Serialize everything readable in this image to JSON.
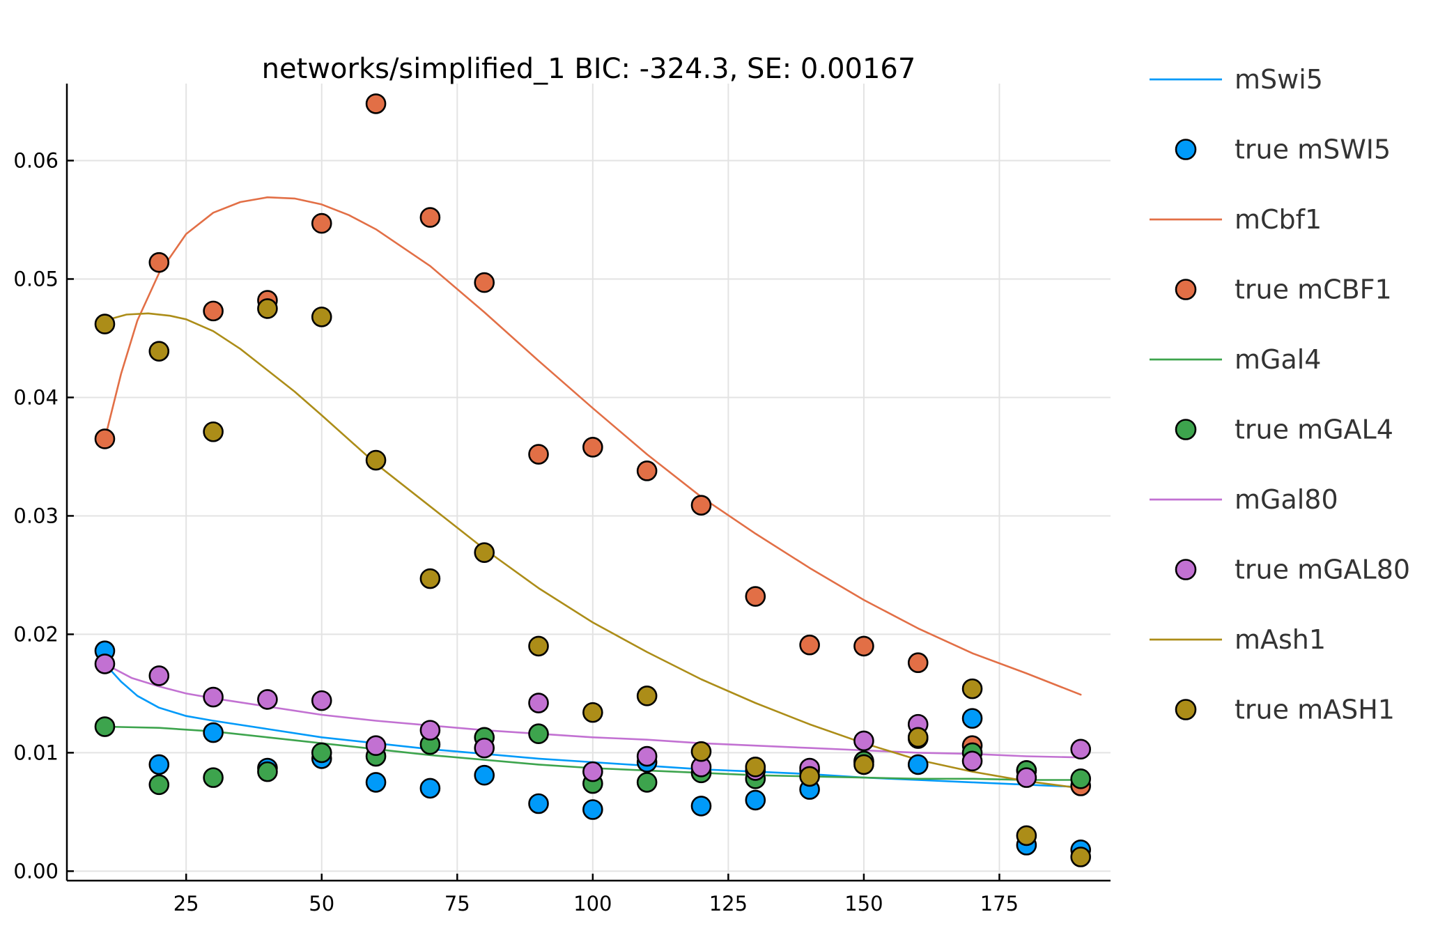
{
  "chart_data": {
    "type": "scatter",
    "title": "networks/simplified_1 BIC: -324.3, SE: 0.00167",
    "xlabel": "",
    "ylabel": "",
    "xlim": [
      3,
      195.5
    ],
    "ylim": [
      -0.0008,
      0.0665
    ],
    "x_ticks": [
      25,
      50,
      75,
      100,
      125,
      150,
      175
    ],
    "x_tick_labels": [
      "25",
      "50",
      "75",
      "100",
      "125",
      "150",
      "175"
    ],
    "y_ticks": [
      0.0,
      0.01,
      0.02,
      0.03,
      0.04,
      0.05,
      0.06
    ],
    "y_tick_labels": [
      "0.00",
      "0.01",
      "0.02",
      "0.03",
      "0.04",
      "0.05",
      "0.06"
    ],
    "grid": true,
    "legend_position": "right, outside",
    "x_points": [
      10,
      20,
      30,
      40,
      50,
      60,
      70,
      80,
      90,
      100,
      110,
      120,
      130,
      140,
      150,
      160,
      170,
      180,
      190
    ],
    "series": [
      {
        "name": "mSwi5",
        "kind": "line",
        "color": "#009af9",
        "x": [
          10,
          13,
          16,
          20,
          25,
          30,
          40,
          50,
          60,
          70,
          80,
          90,
          100,
          110,
          120,
          130,
          140,
          150,
          160,
          170,
          180,
          190
        ],
        "y": [
          0.0175,
          0.016,
          0.0148,
          0.0138,
          0.0131,
          0.0127,
          0.012,
          0.0113,
          0.0108,
          0.0103,
          0.0099,
          0.0095,
          0.0092,
          0.0089,
          0.0086,
          0.0084,
          0.0082,
          0.0079,
          0.0077,
          0.0075,
          0.0073,
          0.0071
        ]
      },
      {
        "name": "true mSWI5",
        "kind": "scatter",
        "color": "#009af9",
        "y": [
          0.0186,
          0.009,
          0.0117,
          0.0087,
          0.0095,
          0.0075,
          0.007,
          0.0081,
          0.0057,
          0.0052,
          0.0092,
          0.0055,
          0.006,
          0.0069,
          0.0092,
          0.009,
          0.0129,
          0.0022,
          0.0018
        ]
      },
      {
        "name": "mCbf1",
        "kind": "line",
        "color": "#e26f46",
        "x": [
          10,
          13,
          16,
          20,
          25,
          30,
          35,
          40,
          45,
          50,
          55,
          60,
          70,
          80,
          90,
          100,
          110,
          120,
          130,
          140,
          150,
          160,
          170,
          180,
          190
        ],
        "y": [
          0.0365,
          0.042,
          0.0465,
          0.0505,
          0.0538,
          0.0556,
          0.0565,
          0.0569,
          0.0568,
          0.0563,
          0.0554,
          0.0542,
          0.0511,
          0.0472,
          0.0431,
          0.0391,
          0.0352,
          0.0316,
          0.0285,
          0.0256,
          0.0229,
          0.0205,
          0.0184,
          0.0167,
          0.0149
        ]
      },
      {
        "name": "true mCBF1",
        "kind": "scatter",
        "color": "#e26f46",
        "y": [
          0.0365,
          0.0514,
          0.0473,
          0.0482,
          0.0547,
          0.0648,
          0.0552,
          0.0497,
          0.0352,
          0.0358,
          0.0338,
          0.0309,
          0.0232,
          0.0191,
          0.019,
          0.0176,
          0.0106,
          0.0085,
          0.0072
        ]
      },
      {
        "name": "mGal4",
        "kind": "line",
        "color": "#3da44d",
        "x": [
          10,
          20,
          30,
          40,
          50,
          60,
          70,
          80,
          90,
          100,
          110,
          120,
          130,
          140,
          150,
          160,
          170,
          180,
          190
        ],
        "y": [
          0.0122,
          0.0121,
          0.0118,
          0.0113,
          0.0108,
          0.0103,
          0.0098,
          0.0094,
          0.009,
          0.0087,
          0.0085,
          0.0083,
          0.0081,
          0.008,
          0.0079,
          0.0078,
          0.0078,
          0.0077,
          0.0077
        ]
      },
      {
        "name": "true mGAL4",
        "kind": "scatter",
        "color": "#3da44d",
        "y": [
          0.0122,
          0.0073,
          0.0079,
          0.0084,
          0.01,
          0.0097,
          0.0107,
          0.0113,
          0.0116,
          0.0074,
          0.0075,
          0.0083,
          0.0078,
          0.0085,
          0.0093,
          0.0112,
          0.01,
          0.0085,
          0.0078
        ]
      },
      {
        "name": "mGal80",
        "kind": "line",
        "color": "#c271d2",
        "x": [
          10,
          15,
          20,
          25,
          30,
          40,
          50,
          60,
          70,
          80,
          90,
          100,
          110,
          120,
          130,
          140,
          150,
          160,
          170,
          180,
          190
        ],
        "y": [
          0.0175,
          0.0163,
          0.0156,
          0.015,
          0.0146,
          0.0139,
          0.0132,
          0.0127,
          0.0123,
          0.0119,
          0.0116,
          0.0113,
          0.0111,
          0.0108,
          0.0106,
          0.0104,
          0.0102,
          0.01,
          0.0099,
          0.0097,
          0.0096
        ]
      },
      {
        "name": "true mGAL80",
        "kind": "scatter",
        "color": "#c271d2",
        "y": [
          0.0175,
          0.0165,
          0.0147,
          0.0145,
          0.0144,
          0.0106,
          0.0119,
          0.0104,
          0.0142,
          0.0084,
          0.0097,
          0.0088,
          0.0085,
          0.0087,
          0.011,
          0.0124,
          0.0093,
          0.0079,
          0.0103
        ]
      },
      {
        "name": "mAsh1",
        "kind": "line",
        "color": "#ac8d18",
        "x": [
          10,
          14,
          18,
          22,
          25,
          30,
          35,
          40,
          45,
          50,
          60,
          70,
          80,
          90,
          100,
          110,
          120,
          130,
          140,
          150,
          160,
          170,
          180,
          190
        ],
        "y": [
          0.0465,
          0.047,
          0.0471,
          0.0469,
          0.0466,
          0.0456,
          0.0441,
          0.0423,
          0.0405,
          0.0385,
          0.0344,
          0.0308,
          0.0272,
          0.0239,
          0.021,
          0.0185,
          0.0162,
          0.0142,
          0.0124,
          0.0108,
          0.0094,
          0.0084,
          0.0076,
          0.007
        ]
      },
      {
        "name": "true mASH1",
        "kind": "scatter",
        "color": "#ac8d18",
        "y": [
          0.0462,
          0.0439,
          0.0371,
          0.0475,
          0.0468,
          0.0347,
          0.0247,
          0.0269,
          0.019,
          0.0134,
          0.0148,
          0.0101,
          0.0088,
          0.008,
          0.009,
          0.0113,
          0.0154,
          0.003,
          0.0012
        ]
      }
    ]
  }
}
